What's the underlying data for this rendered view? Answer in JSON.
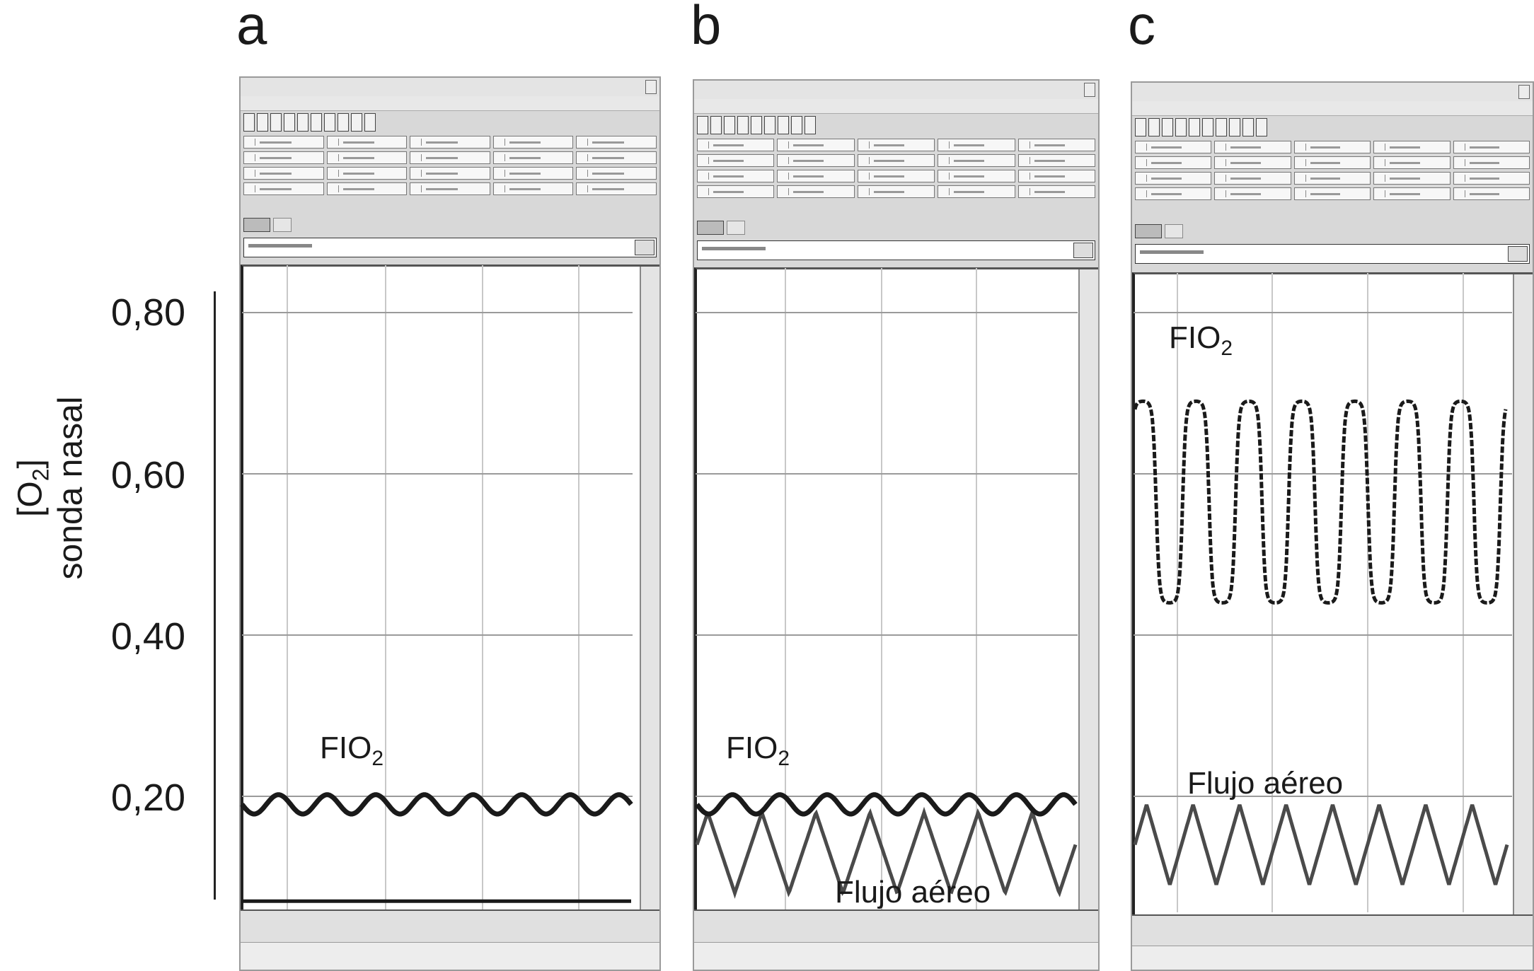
{
  "panels": [
    {
      "letter": "a",
      "fio2_label": "FIO",
      "fio2_sub": "2",
      "airflow_label": ""
    },
    {
      "letter": "b",
      "fio2_label": "FIO",
      "fio2_sub": "2",
      "airflow_label": "Flujo aéreo"
    },
    {
      "letter": "c",
      "fio2_label": "FIO",
      "fio2_sub": "2",
      "airflow_label": "Flujo aéreo"
    }
  ],
  "y_axis": {
    "title_line1": "[O",
    "title_sub": "2",
    "title_close": "]",
    "title_line2": "sonda nasal",
    "ticks": [
      "0,80",
      "0,60",
      "0,40",
      "0,20"
    ],
    "tick_values": [
      0.8,
      0.6,
      0.4,
      0.2
    ]
  },
  "colors": {
    "fio2_trace": "#1a1a1a",
    "airflow_trace": "#4a4a4a",
    "gridline": "#9a9a9a",
    "vertical_grid": "#c8c8c8"
  },
  "traces": {
    "a": {
      "fio2": {
        "baseline": 0.19,
        "amplitude": 0.012,
        "cycles": 8
      },
      "flat_line": 0.07
    },
    "b": {
      "fio2": {
        "baseline": 0.19,
        "amplitude": 0.012,
        "cycles": 8
      },
      "airflow": {
        "center": 0.13,
        "amplitude": 0.05,
        "cycles": 7
      }
    },
    "c": {
      "fio2": {
        "high": 0.69,
        "low": 0.44,
        "cycles": 7
      },
      "airflow": {
        "center": 0.14,
        "amplitude": 0.05,
        "cycles": 8
      }
    }
  }
}
